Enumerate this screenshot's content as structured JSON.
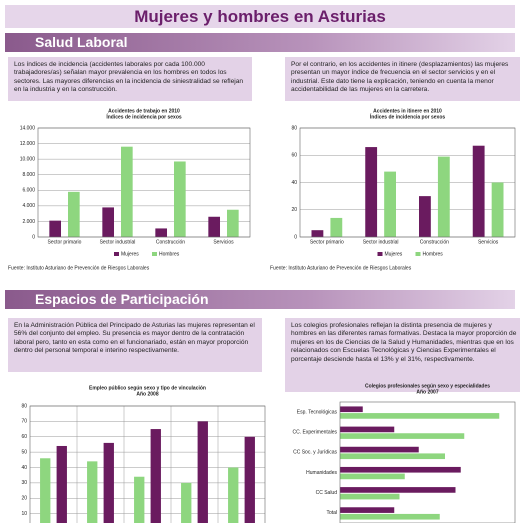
{
  "title": "Mujeres y hombres en Asturias",
  "sections": [
    {
      "heading": "Salud Laboral",
      "texts": [
        "Los índices de incidencia (accidentes laborales por cada 100.000 trabajadores/as) señalan mayor prevalencia en los hombres en todos los sectores. Las mayores diferencias en la incidencia de siniestralidad se reflejan en la industria y en la construcción.",
        "Por el contrario, en los accidentes in itinere (desplazamientos) las mujeres presentan un mayor índice de frecuencia en el sector servicios y en el industrial. Este dato tiene la explicación, teniendo en cuenta la menor accidentabilidad de las mujeres en la carretera."
      ]
    },
    {
      "heading": "Espacios de Participación",
      "texts": [
        "En la Administración Pública del Principado de Asturias las mujeres representan el 56% del conjunto del empleo. Su presencia es mayor dentro de la contratación laboral pero, tanto en esta como en el funcionariado, están en mayor proporción dentro del personal temporal e interino respectivamente.",
        "Los colegios profesionales reflejan la distinta presencia de mujeres y hombres en las diferentes ramas formativas. Destaca la mayor proporción de mujeres en los de Ciencias de la Salud y Humanidades, mientras que en los relacionados con Escuelas Tecnológicas y Ciencias Experimentales el porcentaje desciende hasta el 13% y el 31%, respectivamente."
      ]
    }
  ],
  "chart_data": [
    {
      "type": "bar",
      "title": "Accidentes de trabajo en 2010",
      "subtitle": "Índices de incidencia por sexos",
      "categories": [
        "Sector primario",
        "Sector industrial",
        "Construcción",
        "Servicios"
      ],
      "series": [
        {
          "name": "Mujeres",
          "color": "#6a1b5f",
          "values": [
            2100,
            3800,
            1100,
            2600
          ]
        },
        {
          "name": "Hombres",
          "color": "#8ed67f",
          "values": [
            5800,
            11600,
            9700,
            3500
          ]
        }
      ],
      "ylim": [
        0,
        14000
      ],
      "yticks": [
        0,
        {
          "value": 2000,
          "label": "2.000"
        },
        {
          "value": 4000,
          "label": "4.000"
        },
        {
          "value": 6000,
          "label": "6.000"
        },
        {
          "value": 8000,
          "label": "8.000"
        },
        {
          "value": 10000,
          "label": "10.000"
        },
        {
          "value": 12000,
          "label": "12.000"
        },
        {
          "value": 14000,
          "label": "14.000"
        }
      ],
      "grid": true,
      "legend": "bottom",
      "source": "Fuente: Instituto Asturiano de Prevención de Riesgos Laborales"
    },
    {
      "type": "bar",
      "title": "Accidentes in itinere en 2010",
      "subtitle": "Índices de incidencia por sexos",
      "categories": [
        "Sector primario",
        "Sector industrial",
        "Construcción",
        "Servicios"
      ],
      "series": [
        {
          "name": "Mujeres",
          "color": "#6a1b5f",
          "values": [
            5,
            66,
            30,
            67
          ]
        },
        {
          "name": "Hombres",
          "color": "#8ed67f",
          "values": [
            14,
            48,
            59,
            40
          ]
        }
      ],
      "ylim": [
        0,
        80
      ],
      "yticks": [
        0,
        20,
        40,
        60,
        80
      ],
      "grid": true,
      "legend": "bottom",
      "source": "Fuente: Instituto Asturiano de Prevención de Riesgos Laborales"
    },
    {
      "type": "bar",
      "title": "Empleo público según sexo y tipo de vinculación",
      "subtitle": "Año 2008",
      "categories": [
        null,
        null,
        null,
        null,
        null
      ],
      "series": [
        {
          "color": "#8ed67f",
          "values": [
            46,
            44,
            34,
            30,
            40
          ]
        },
        {
          "color": "#6a1b5f",
          "values": [
            54,
            56,
            65,
            70,
            60
          ]
        }
      ],
      "ylim": [
        0,
        80
      ],
      "yticks": [
        10,
        20,
        30,
        40,
        50,
        60,
        70,
        80
      ],
      "grid": true
    },
    {
      "type": "hbar",
      "title": "Colegios profesionales según sexo y especialidades",
      "subtitle": "Año 2007",
      "categories": [
        "Esp. Tecnológicas",
        "CC. Experimentales",
        "CC Soc. y Jurídicas",
        "Humanidades",
        "CC Salud",
        "Total"
      ],
      "series": [
        {
          "color": "#6a1b5f",
          "values": [
            13,
            31,
            45,
            69,
            66,
            31
          ]
        },
        {
          "color": "#8ed67f",
          "values": [
            91,
            71,
            60,
            37,
            34,
            57
          ]
        }
      ],
      "xlim": [
        0,
        100
      ]
    }
  ]
}
